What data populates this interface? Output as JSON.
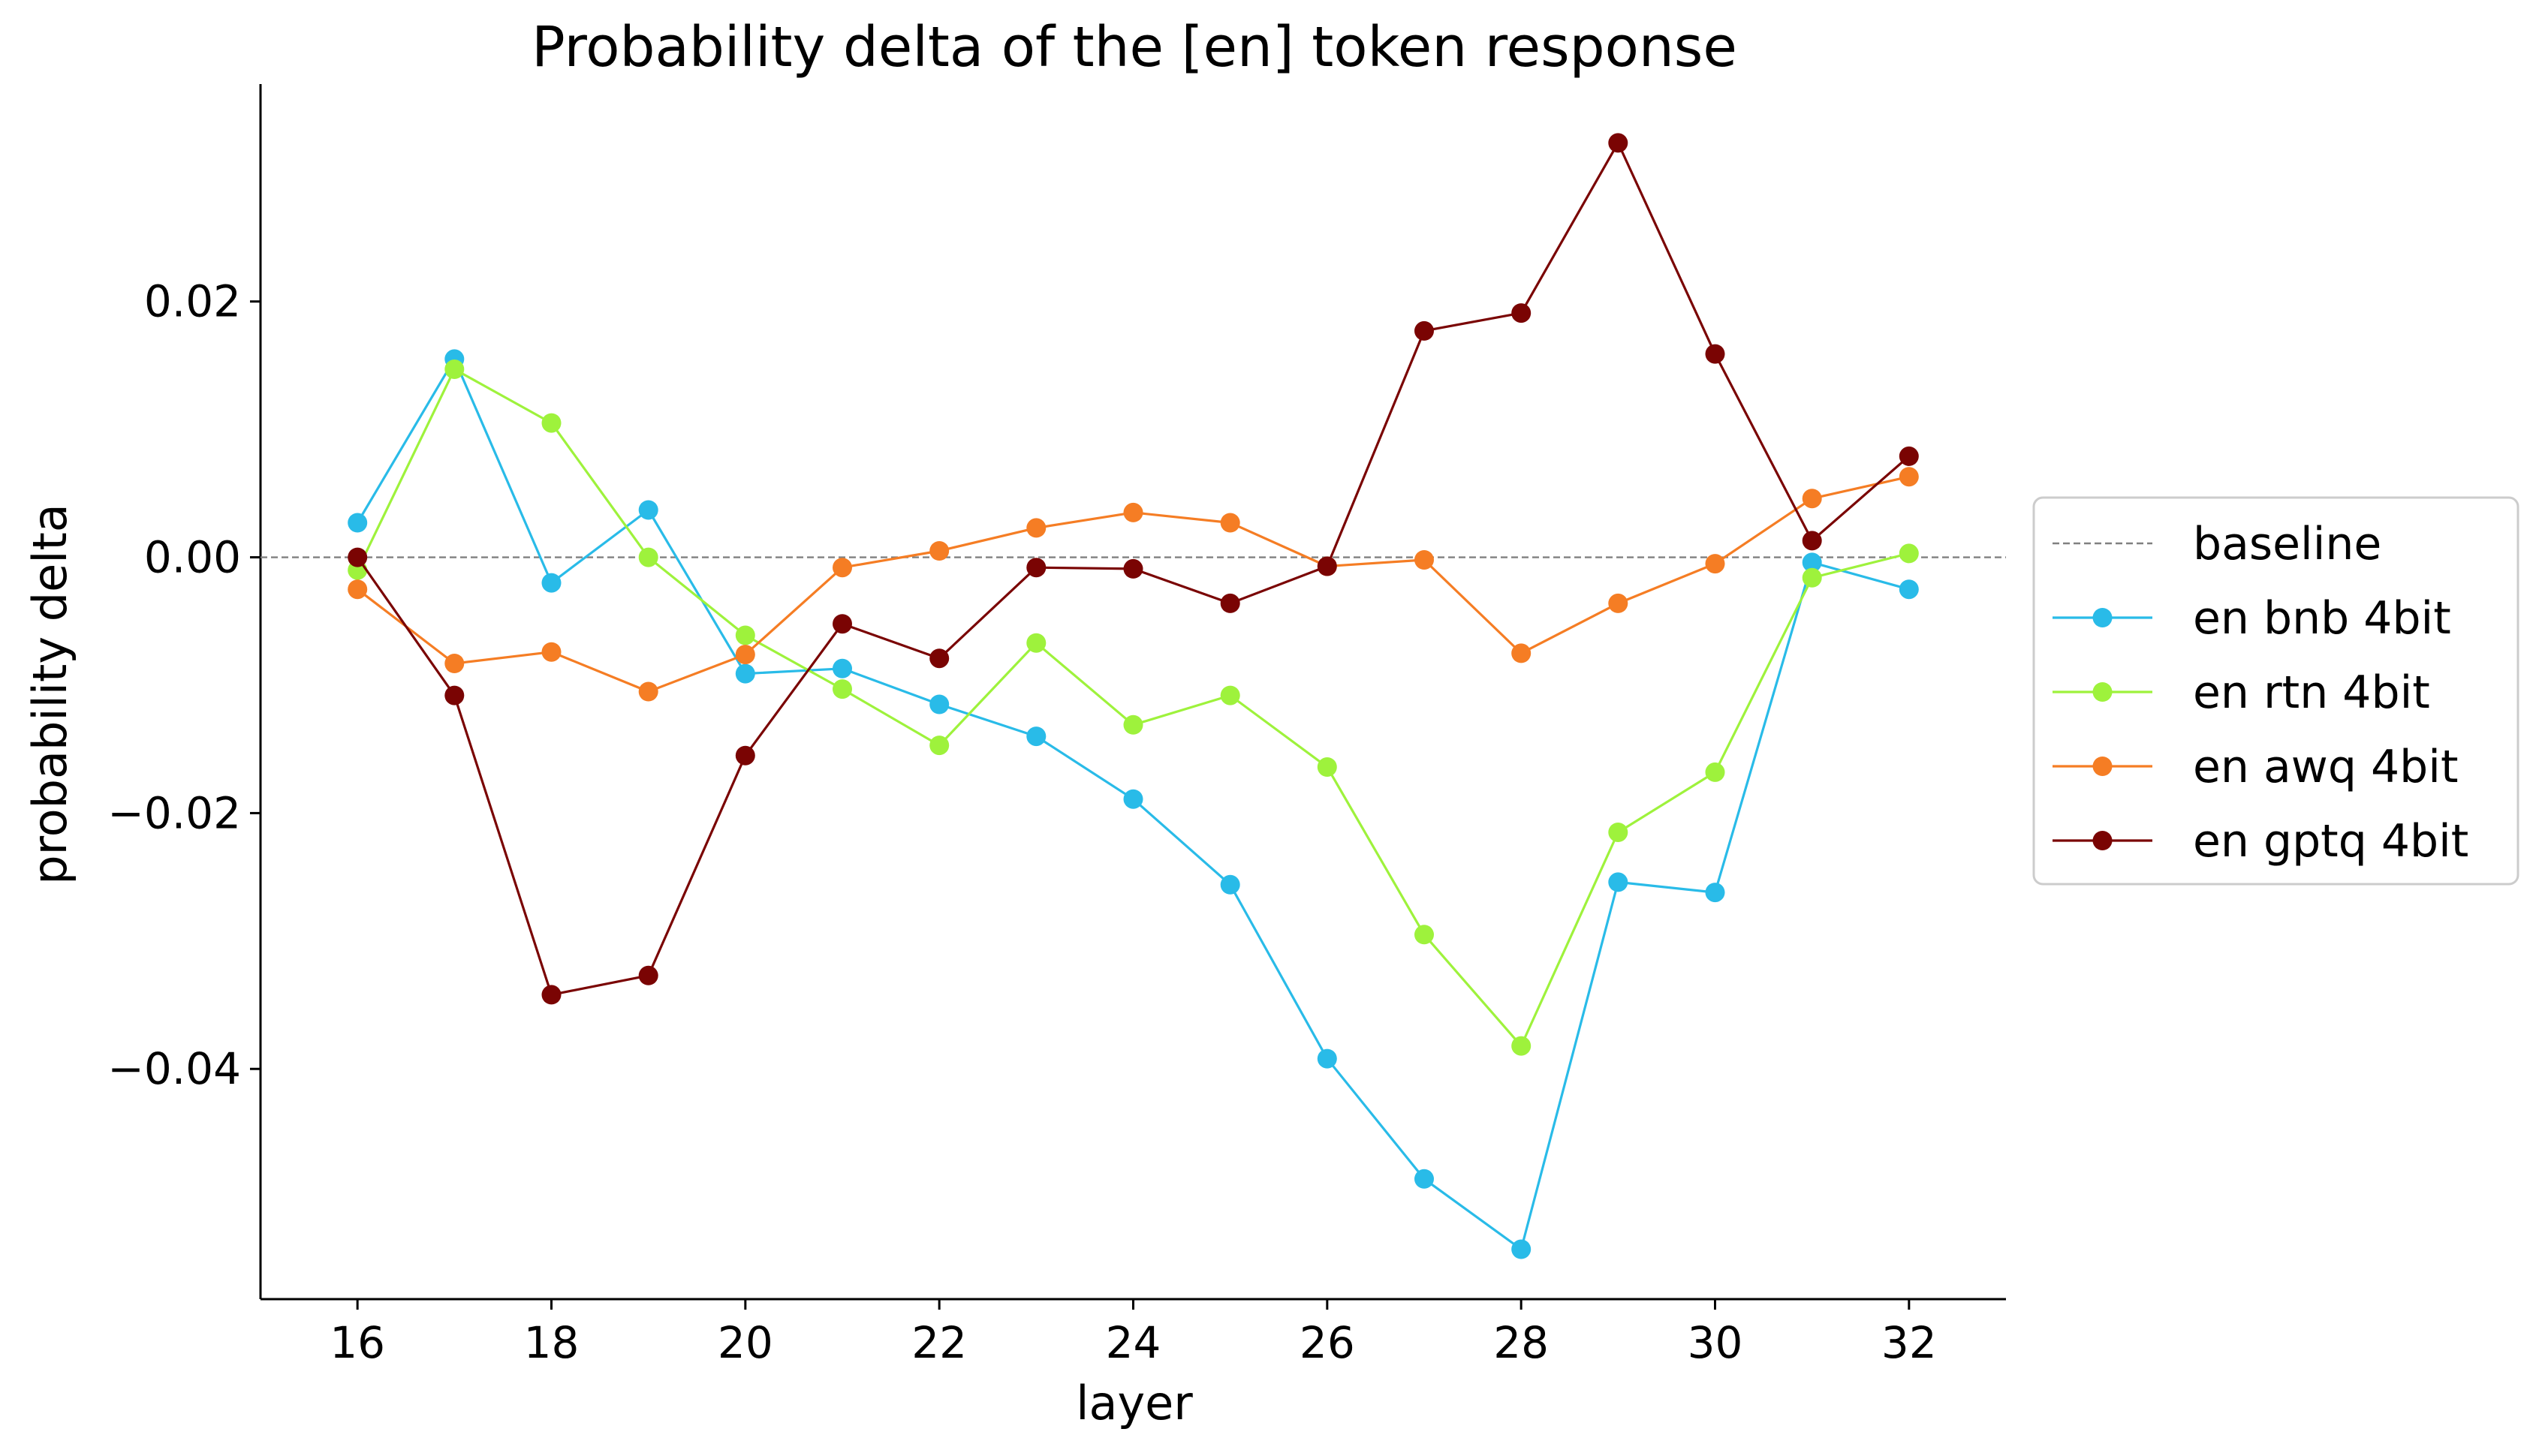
{
  "chart_data": {
    "type": "line",
    "title": "Probability delta of the [en] token response",
    "xlabel": "layer",
    "ylabel": "probability delta",
    "x": [
      16,
      17,
      18,
      19,
      20,
      21,
      22,
      23,
      24,
      25,
      26,
      27,
      28,
      29,
      30,
      31,
      32
    ],
    "xlim": [
      15,
      33
    ],
    "ylim": [
      -0.058,
      0.037
    ],
    "xticks": [
      16,
      18,
      20,
      22,
      24,
      26,
      28,
      30,
      32
    ],
    "yticks": [
      0.02,
      0.0,
      -0.02,
      -0.04
    ],
    "ytick_labels": [
      "0.02",
      "0.00",
      "−0.02",
      "−0.04"
    ],
    "grid": false,
    "legend_position": "right-outside",
    "baseline": {
      "name": "baseline",
      "value": 0.0,
      "color": "#808080",
      "style": "dashed"
    },
    "series": [
      {
        "name": "en bnb 4bit",
        "color": "#29BBE8",
        "values": [
          0.0027,
          0.0155,
          -0.002,
          0.0037,
          -0.0091,
          -0.0087,
          -0.0115,
          -0.014,
          -0.0189,
          -0.0256,
          -0.0392,
          -0.0486,
          -0.0541,
          -0.0254,
          -0.0262,
          -0.0004,
          -0.0025
        ]
      },
      {
        "name": "en rtn 4bit",
        "color": "#9EF23C",
        "values": [
          -0.001,
          0.0147,
          0.0105,
          0.0,
          -0.0061,
          -0.0103,
          -0.0147,
          -0.0067,
          -0.0131,
          -0.0108,
          -0.0164,
          -0.0295,
          -0.0382,
          -0.0215,
          -0.0168,
          -0.0016,
          0.0003
        ]
      },
      {
        "name": "en awq 4bit",
        "color": "#F57D24",
        "values": [
          -0.0025,
          -0.0083,
          -0.0074,
          -0.0105,
          -0.0076,
          -0.0008,
          0.0005,
          0.0023,
          0.0035,
          0.0027,
          -0.0007,
          -0.0002,
          -0.0075,
          -0.0036,
          -0.0005,
          0.0046,
          0.0063
        ]
      },
      {
        "name": "en gptq 4bit",
        "color": "#7A0403",
        "values": [
          0.0,
          -0.0108,
          -0.0342,
          -0.0327,
          -0.0155,
          -0.0052,
          -0.0079,
          -0.0008,
          -0.0009,
          -0.0036,
          -0.0007,
          0.0177,
          0.0191,
          0.0324,
          0.0159,
          0.0013,
          0.0079
        ]
      }
    ]
  }
}
